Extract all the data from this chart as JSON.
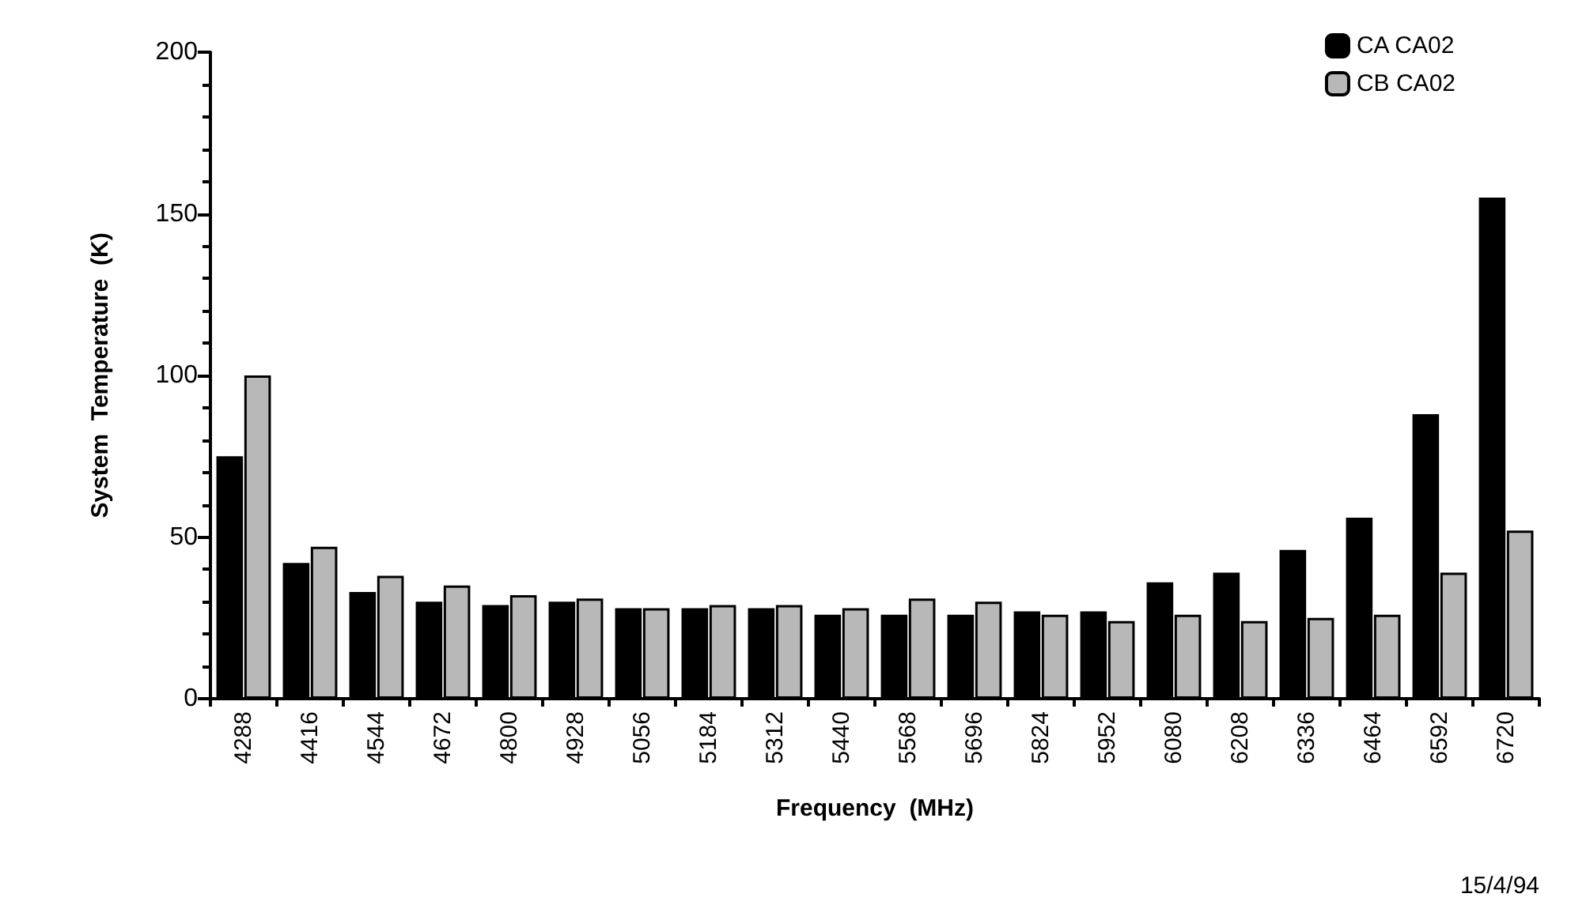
{
  "chart_data": {
    "type": "bar",
    "xlabel": "Frequency  (MHz)",
    "ylabel": "System  Temperature  (K)",
    "categories": [
      "4288",
      "4416",
      "4544",
      "4672",
      "4800",
      "4928",
      "5056",
      "5184",
      "5312",
      "5440",
      "5568",
      "5696",
      "5824",
      "5952",
      "6080",
      "6208",
      "6336",
      "6464",
      "6592",
      "6720"
    ],
    "series": [
      {
        "name": "CA CA02",
        "color": "#000000",
        "values": [
          75,
          42,
          33,
          30,
          29,
          30,
          28,
          28,
          28,
          26,
          26,
          26,
          27,
          27,
          36,
          39,
          46,
          56,
          88,
          155
        ]
      },
      {
        "name": "CB CA02",
        "color": "#b8b8b8",
        "values": [
          100,
          47,
          38,
          35,
          32,
          31,
          28,
          29,
          29,
          28,
          31,
          30,
          26,
          24,
          26,
          24,
          25,
          26,
          39,
          52
        ]
      }
    ],
    "ylim": [
      0,
      200
    ],
    "yticks": [
      0,
      50,
      100,
      150,
      200
    ],
    "grid": false,
    "legend": "top right",
    "annotations": [
      "15/4/94"
    ]
  }
}
